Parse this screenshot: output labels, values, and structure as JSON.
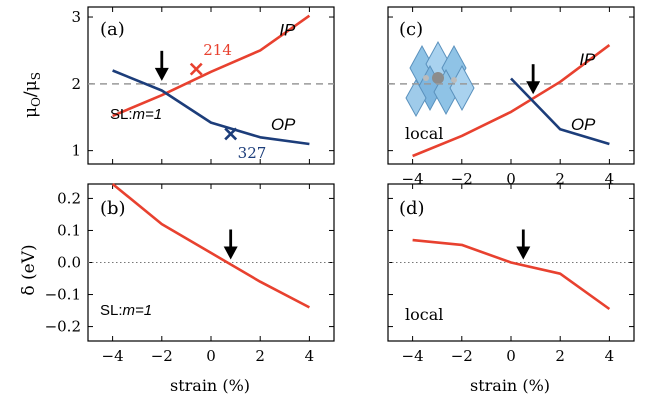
{
  "colors": {
    "red": "#e8412f",
    "blue": "#1c3d7a",
    "gray": "#999999",
    "frame": "#000000"
  },
  "chart_data": [
    {
      "panel": "(a)",
      "type": "line",
      "ylabel_base": "μ",
      "ylabel_sub1": "O",
      "ylabel_sub2": "S",
      "ylabel_slash": "/",
      "xlim": [
        -5,
        5
      ],
      "ylim": [
        0.8,
        3.15
      ],
      "xticks": [],
      "yticks": [
        "1",
        "2",
        "3"
      ],
      "ytick_values": [
        1,
        2,
        3
      ],
      "series": [
        {
          "name": "IP",
          "color": "red",
          "x": [
            -4,
            -2,
            0,
            2,
            4
          ],
          "y": [
            1.52,
            1.83,
            2.18,
            2.5,
            3.02
          ]
        },
        {
          "name": "OP",
          "color": "blue",
          "x": [
            -4,
            -2,
            0,
            2,
            4
          ],
          "y": [
            2.2,
            1.9,
            1.42,
            1.2,
            1.1
          ]
        }
      ],
      "dashed_y": 2.0,
      "markers": [
        {
          "label": "214",
          "color": "red",
          "x": -0.6,
          "y": 2.22
        },
        {
          "label": "327",
          "color": "blue",
          "x": 0.8,
          "y": 1.25
        }
      ],
      "arrow_x": -2.0,
      "arrow_y": 2.0,
      "note_prefix": "SL:",
      "note_m": "m=1"
    },
    {
      "panel": "(c)",
      "type": "line",
      "xlim": [
        -5,
        5
      ],
      "ylim": [
        0.8,
        3.15
      ],
      "xticks": [
        "−4",
        "−2",
        "0",
        "2",
        "4"
      ],
      "xtick_values": [
        -4,
        -2,
        0,
        2,
        4
      ],
      "series": [
        {
          "name": "IP",
          "color": "red",
          "x": [
            -4,
            -2,
            0,
            2,
            4
          ],
          "y": [
            0.92,
            1.22,
            1.58,
            2.03,
            2.58
          ]
        },
        {
          "name": "OP",
          "color": "blue",
          "x": [
            0,
            2,
            4
          ],
          "y": [
            2.08,
            1.32,
            1.1
          ]
        }
      ],
      "dashed_y": 2.0,
      "arrow_x": 0.9,
      "arrow_y": 1.8,
      "note": "local"
    },
    {
      "panel": "(b)",
      "type": "line",
      "ylabel": "δ (eV)",
      "xlabel": "strain (%)",
      "xlim": [
        -5,
        5
      ],
      "ylim": [
        -0.245,
        0.245
      ],
      "xticks": [
        "−4",
        "−2",
        "0",
        "2",
        "4"
      ],
      "xtick_values": [
        -4,
        -2,
        0,
        2,
        4
      ],
      "yticks": [
        "0.2",
        "0.1",
        "0.0",
        "−0.1",
        "−0.2"
      ],
      "ytick_values": [
        0.2,
        0.1,
        0.0,
        -0.1,
        -0.2
      ],
      "series": [
        {
          "color": "red",
          "x": [
            -4,
            -2,
            0,
            2,
            4
          ],
          "y": [
            0.245,
            0.12,
            0.03,
            -0.06,
            -0.14
          ]
        }
      ],
      "dotted_y": 0.0,
      "arrow_x": 0.8,
      "arrow_y": 0.0,
      "note_prefix": "SL:",
      "note_m": "m=1"
    },
    {
      "panel": "(d)",
      "type": "line",
      "xlabel": "strain (%)",
      "xlim": [
        -5,
        5
      ],
      "ylim": [
        -0.245,
        0.245
      ],
      "xticks": [
        "−4",
        "−2",
        "0",
        "2",
        "4"
      ],
      "xtick_values": [
        -4,
        -2,
        0,
        2,
        4
      ],
      "series": [
        {
          "color": "red",
          "x": [
            -4,
            -2,
            0,
            2,
            4
          ],
          "y": [
            0.07,
            0.055,
            0.0,
            -0.035,
            -0.145
          ]
        }
      ],
      "dotted_y": 0.0,
      "arrow_x": 0.5,
      "arrow_y": 0.0,
      "note": "local"
    }
  ]
}
